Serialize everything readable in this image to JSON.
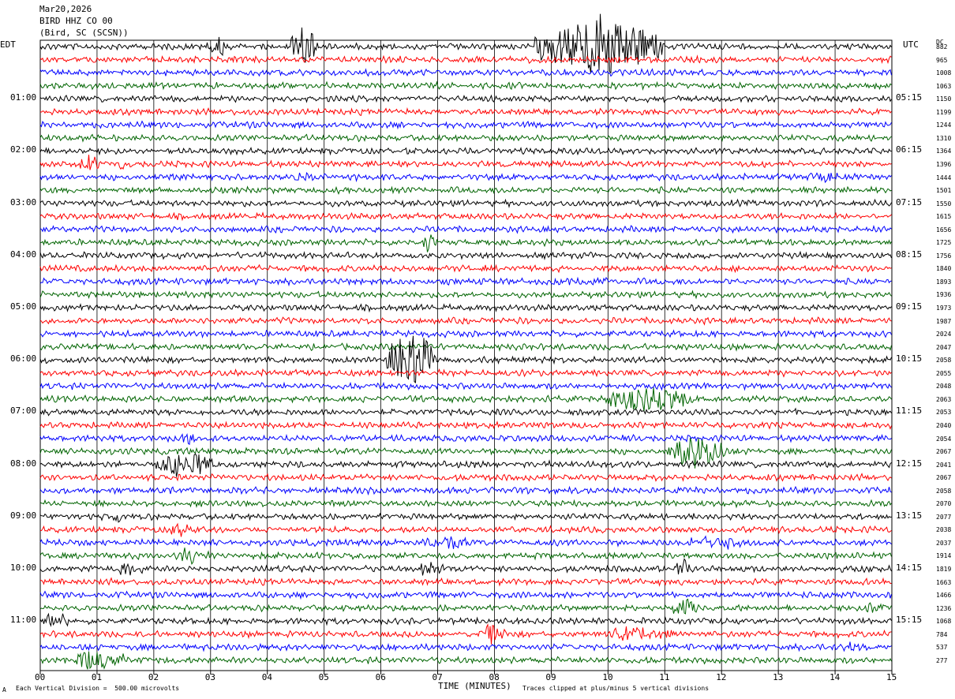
{
  "header": {
    "date": "Mar20,2026",
    "channel": "BIRD HHZ CO 00",
    "station": "(Bird, SC (SCSN))"
  },
  "left_axis_title": "EDT",
  "right_axis_title": "UTC",
  "dc_header": "DC",
  "left_hour_labels": [
    "01:00",
    "02:00",
    "03:00",
    "04:00",
    "05:00",
    "06:00",
    "07:00",
    "08:00",
    "09:00",
    "10:00",
    "11:00"
  ],
  "right_hour_labels": [
    "05:15",
    "06:15",
    "07:15",
    "08:15",
    "09:15",
    "10:15",
    "11:15",
    "12:15",
    "13:15",
    "14:15",
    "15:15"
  ],
  "dc_values": [
    "882",
    "965",
    "1008",
    "1063",
    "1150",
    "1199",
    "1244",
    "1310",
    "1364",
    "1396",
    "1444",
    "1501",
    "1550",
    "1615",
    "1656",
    "1725",
    "1756",
    "1840",
    "1893",
    "1936",
    "1973",
    "1987",
    "2024",
    "2047",
    "2058",
    "2055",
    "2048",
    "2063",
    "2053",
    "2040",
    "2054",
    "2067",
    "2041",
    "2067",
    "2058",
    "2070",
    "2077",
    "2038",
    "2037",
    "1914",
    "1819",
    "1663",
    "1466",
    "1236",
    "1068",
    "784",
    "537",
    "277"
  ],
  "x_tick_labels": [
    "00",
    "01",
    "02",
    "03",
    "04",
    "05",
    "06",
    "07",
    "08",
    "09",
    "10",
    "11",
    "12",
    "13",
    "14",
    "15"
  ],
  "x_axis_title": "TIME (MINUTES)",
  "footer_left": "Each Vertical Division =  500.00 microvolts",
  "footer_right": "Traces clipped at plus/minus 5 vertical divisions",
  "corner_mark": "A",
  "colors": {
    "trace_cycle": [
      "#000000",
      "#ff0000",
      "#0000ff",
      "#006400"
    ],
    "grid": "#000000"
  },
  "chart_data": {
    "type": "line",
    "title": "BIRD HHZ CO 00",
    "xlabel": "TIME (MINUTES)",
    "xlim": [
      0,
      15
    ],
    "line_count": 48,
    "minutes_per_line": 15,
    "events": [
      {
        "line": 0,
        "start_min": 2.9,
        "end_min": 3.4,
        "amp": 1.1
      },
      {
        "line": 0,
        "start_min": 4.4,
        "end_min": 4.9,
        "amp": 3.0
      },
      {
        "line": 0,
        "start_min": 8.7,
        "end_min": 11.0,
        "amp": 4.5
      },
      {
        "line": 9,
        "start_min": 0.6,
        "end_min": 1.1,
        "amp": 1.3
      },
      {
        "line": 9,
        "start_min": 1.3,
        "end_min": 1.6,
        "amp": 0.8
      },
      {
        "line": 10,
        "start_min": 4.2,
        "end_min": 5.2,
        "amp": 0.6
      },
      {
        "line": 10,
        "start_min": 13.5,
        "end_min": 14.2,
        "amp": 0.6
      },
      {
        "line": 15,
        "start_min": 6.7,
        "end_min": 6.95,
        "amp": 1.4
      },
      {
        "line": 18,
        "start_min": 9.0,
        "end_min": 10.2,
        "amp": 0.5
      },
      {
        "line": 24,
        "start_min": 6.1,
        "end_min": 7.0,
        "amp": 5.0
      },
      {
        "line": 27,
        "start_min": 9.8,
        "end_min": 11.6,
        "amp": 1.8
      },
      {
        "line": 30,
        "start_min": 2.5,
        "end_min": 2.8,
        "amp": 1.0
      },
      {
        "line": 31,
        "start_min": 11.0,
        "end_min": 12.1,
        "amp": 2.5
      },
      {
        "line": 32,
        "start_min": 2.0,
        "end_min": 3.1,
        "amp": 1.8
      },
      {
        "line": 36,
        "start_min": 1.2,
        "end_min": 1.5,
        "amp": 0.8
      },
      {
        "line": 37,
        "start_min": 2.3,
        "end_min": 2.6,
        "amp": 1.0
      },
      {
        "line": 38,
        "start_min": 6.8,
        "end_min": 7.6,
        "amp": 0.9
      },
      {
        "line": 38,
        "start_min": 11.3,
        "end_min": 12.4,
        "amp": 0.9
      },
      {
        "line": 39,
        "start_min": 2.3,
        "end_min": 3.0,
        "amp": 1.0
      },
      {
        "line": 40,
        "start_min": 1.3,
        "end_min": 1.8,
        "amp": 1.1
      },
      {
        "line": 40,
        "start_min": 6.6,
        "end_min": 7.1,
        "amp": 0.8
      },
      {
        "line": 40,
        "start_min": 11.2,
        "end_min": 11.5,
        "amp": 1.6
      },
      {
        "line": 43,
        "start_min": 11.1,
        "end_min": 11.6,
        "amp": 1.6
      },
      {
        "line": 43,
        "start_min": 14.5,
        "end_min": 15.0,
        "amp": 0.7
      },
      {
        "line": 44,
        "start_min": 0.0,
        "end_min": 0.6,
        "amp": 1.1
      },
      {
        "line": 45,
        "start_min": 7.7,
        "end_min": 8.2,
        "amp": 1.3
      },
      {
        "line": 45,
        "start_min": 10.0,
        "end_min": 11.2,
        "amp": 1.0
      },
      {
        "line": 46,
        "start_min": 14.0,
        "end_min": 14.6,
        "amp": 0.6
      },
      {
        "line": 47,
        "start_min": 0.5,
        "end_min": 1.5,
        "amp": 1.5
      }
    ]
  }
}
